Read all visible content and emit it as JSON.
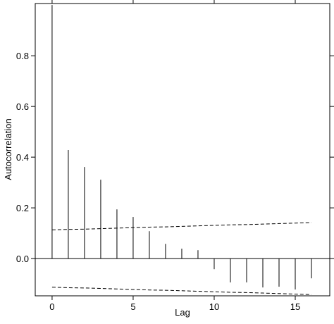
{
  "chart_data": {
    "type": "acf",
    "x_label": "Lag",
    "y_label": "Autocorrelation",
    "x": [
      0,
      1,
      2,
      3,
      4,
      5,
      6,
      7,
      8,
      9,
      10,
      11,
      12,
      13,
      14,
      15,
      16
    ],
    "values": [
      1.0,
      0.428,
      0.361,
      0.311,
      0.194,
      0.164,
      0.108,
      0.058,
      0.039,
      0.033,
      -0.042,
      -0.094,
      -0.094,
      -0.114,
      -0.111,
      -0.122,
      -0.078
    ],
    "confidence_upper": [
      0.113,
      0.115,
      0.116,
      0.118,
      0.12,
      0.122,
      0.124,
      0.125,
      0.127,
      0.129,
      0.131,
      0.133,
      0.134,
      0.136,
      0.138,
      0.14,
      0.142
    ],
    "confidence_lower": [
      -0.113,
      -0.115,
      -0.116,
      -0.118,
      -0.12,
      -0.122,
      -0.124,
      -0.125,
      -0.127,
      -0.129,
      -0.131,
      -0.133,
      -0.134,
      -0.136,
      -0.138,
      -0.14,
      -0.142
    ],
    "color": "#000000",
    "xlim": [
      -1.04,
      17.13
    ],
    "ylim": [
      -0.147,
      1.006
    ],
    "xticks": [
      0,
      5,
      10,
      15
    ],
    "yticks": [
      {
        "value": 0,
        "label": "0.0"
      },
      0.2,
      0.4,
      0.6,
      0.8
    ]
  }
}
